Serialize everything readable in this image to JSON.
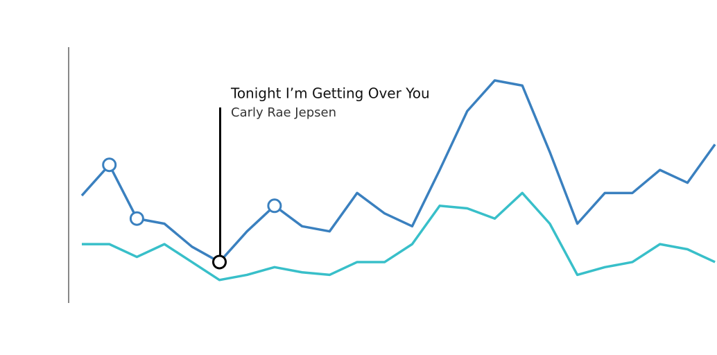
{
  "chart_data": {
    "type": "line",
    "categories": [
      null,
      null,
      null,
      null,
      null,
      null,
      null,
      null,
      null,
      null,
      null,
      null,
      null,
      null,
      null,
      null,
      null,
      null,
      null,
      null,
      null,
      null,
      null,
      null
    ],
    "series": [
      {
        "color": "#3a80bf",
        "values": [
          42,
          54,
          33,
          31,
          22,
          16,
          28,
          38,
          30,
          28,
          43,
          35,
          30,
          52,
          75,
          87,
          85,
          59,
          31,
          43,
          43,
          52,
          47,
          62
        ]
      },
      {
        "color": "#38bfc9",
        "values": [
          23,
          23,
          18,
          23,
          16,
          9,
          11,
          14,
          12,
          11,
          16,
          16,
          23,
          38,
          37,
          33,
          43,
          31,
          11,
          14,
          16,
          23,
          21,
          16
        ]
      }
    ],
    "ylim": [
      0,
      100
    ],
    "annotations": [
      {
        "title": "Tonight I’m Getting Over You",
        "subtitle": "Carly Rae Jepsen"
      }
    ]
  }
}
